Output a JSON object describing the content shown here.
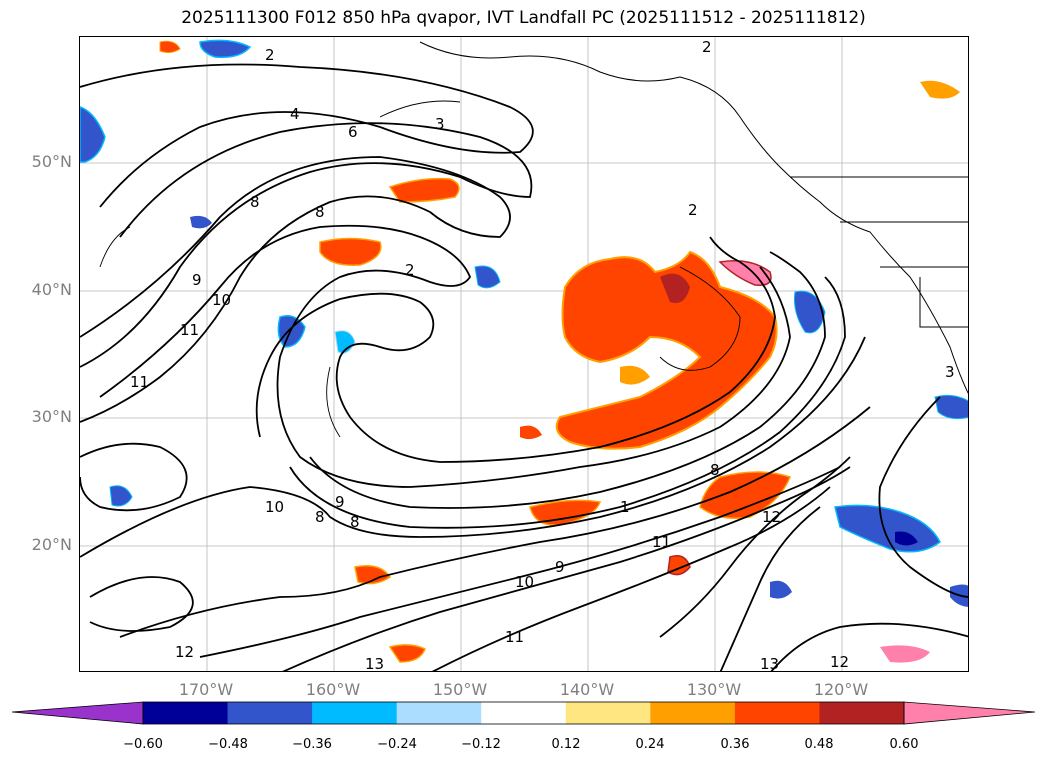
{
  "title": "2025111300 F012 850 hPa qvapor, IVT Landfall PC (2025111512 - 2025111812)",
  "lat_labels": [
    "50°N",
    "40°N",
    "30°N",
    "20°N"
  ],
  "lon_labels": [
    "170°W",
    "160°W",
    "150°W",
    "140°W",
    "130°W",
    "120°W"
  ],
  "colorbar": {
    "ticks": [
      "−0.60",
      "−0.48",
      "−0.36",
      "−0.24",
      "−0.12",
      "0.12",
      "0.24",
      "0.36",
      "0.48",
      "0.60"
    ],
    "colors": [
      "#9933cc",
      "#000099",
      "#3355cc",
      "#00bbff",
      "#aaddff",
      "#ffffff",
      "#ffe680",
      "#ffa000",
      "#ff4400",
      "#b22222",
      "#ff80aa"
    ]
  },
  "contour_labels": [
    "2",
    "2",
    "4",
    "6",
    "3",
    "8",
    "8",
    "9",
    "10",
    "11",
    "2",
    "2",
    "11",
    "9",
    "10",
    "8",
    "8",
    "9",
    "8",
    "1",
    "11",
    "12",
    "12",
    "13",
    "13",
    "12",
    "11",
    "10",
    "3"
  ],
  "colors": {
    "pos_low": "#ffe680",
    "pos_mid": "#ffa000",
    "pos_high": "#ff4400",
    "pos_max": "#b22222",
    "pos_extreme": "#ff80aa",
    "neg_low": "#aaddff",
    "neg_mid": "#00bbff",
    "neg_high": "#3355cc",
    "neg_max": "#000099"
  }
}
